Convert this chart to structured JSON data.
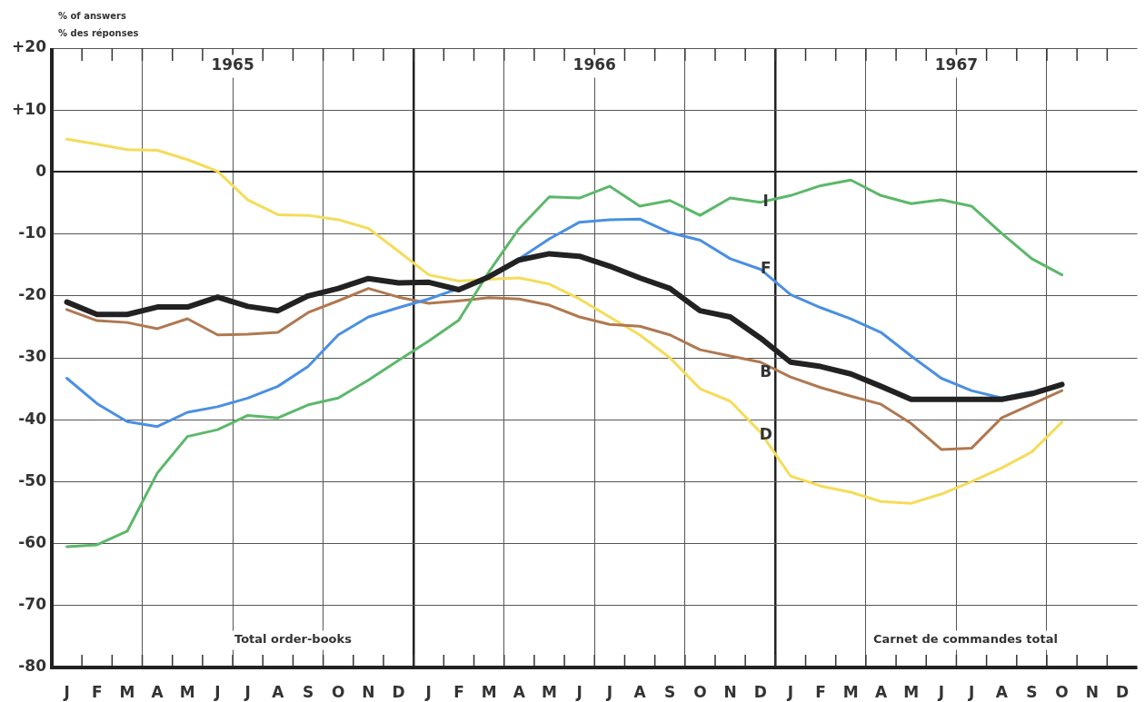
{
  "chart_data": {
    "type": "line",
    "ylabel": "% of answers\n% des réponses",
    "categories": [
      "J",
      "F",
      "M",
      "A",
      "M",
      "J",
      "J",
      "A",
      "S",
      "O",
      "N",
      "D",
      "J",
      "F",
      "M",
      "A",
      "M",
      "J",
      "J",
      "A",
      "S",
      "O",
      "N",
      "D",
      "J",
      "F",
      "M",
      "A",
      "M",
      "J",
      "J",
      "A",
      "S",
      "O",
      "N",
      "D"
    ],
    "ylim": [
      -80,
      20
    ],
    "yticks": [
      {
        "value": 20,
        "label": "+20"
      },
      {
        "value": 10,
        "label": "+10"
      },
      0,
      -10,
      -20,
      -30,
      -40,
      -50,
      -60,
      -70,
      -80
    ],
    "grid": true,
    "legend": false,
    "marker": "none",
    "line_style": "solid",
    "series": [
      {
        "name": "I",
        "color": "#5cb86a",
        "values": [
          -60.5,
          -60.2,
          -58.0,
          -48.6,
          -42.7,
          -41.6,
          -39.3,
          -39.7,
          -37.6,
          -36.5,
          -33.6,
          -30.4,
          -27.3,
          -23.9,
          -16.1,
          -9.1,
          -4.0,
          -4.2,
          -2.3,
          -5.5,
          -4.6,
          -7.0,
          -4.2,
          -4.9,
          -3.8,
          -2.2,
          -1.3,
          -3.8,
          -5.1,
          -4.5,
          -5.5,
          -9.9,
          -14.0,
          -16.6,
          null,
          null
        ]
      },
      {
        "name": "F",
        "color": "#4a90e2",
        "values": [
          -33.3,
          -37.4,
          -40.3,
          -41.1,
          -38.8,
          -37.9,
          -36.5,
          -34.6,
          -31.4,
          -26.3,
          -23.4,
          -21.9,
          -20.5,
          -18.8,
          -16.9,
          -14.0,
          -10.8,
          -8.1,
          -7.7,
          -7.6,
          -9.8,
          -11.0,
          -14.0,
          -15.7,
          -19.8,
          -21.9,
          -23.7,
          -25.9,
          -29.7,
          -33.3,
          -35.3,
          -36.5,
          -35.5,
          null,
          null,
          null
        ]
      },
      {
        "color": "#222222",
        "values": [
          -21.0,
          -23.0,
          -23.0,
          -21.8,
          -21.8,
          -20.2,
          -21.7,
          -22.4,
          -20.0,
          -18.8,
          -17.2,
          -17.9,
          -17.8,
          -19.0,
          -16.9,
          -14.2,
          -13.2,
          -13.6,
          -15.2,
          -17.1,
          -18.8,
          -22.4,
          -23.4,
          -26.8,
          -30.7,
          -31.4,
          -32.6,
          -34.6,
          -36.7,
          -36.7,
          -36.7,
          -36.7,
          -35.8,
          -34.3,
          null,
          null
        ]
      },
      {
        "name": "B",
        "color": "#b07850",
        "values": [
          -22.2,
          -24.0,
          -24.3,
          -25.3,
          -23.7,
          -26.3,
          -26.2,
          -25.9,
          -22.7,
          -20.8,
          -18.8,
          -20.2,
          -21.2,
          -20.8,
          -20.3,
          -20.5,
          -21.5,
          -23.4,
          -24.6,
          -24.9,
          -26.3,
          -28.7,
          -29.7,
          -30.7,
          -33.1,
          -34.8,
          -36.2,
          -37.5,
          -40.6,
          -44.8,
          -44.6,
          -39.7,
          -37.5,
          -35.3,
          null,
          null
        ]
      },
      {
        "name": "D",
        "color": "#f5dc5a",
        "values": [
          5.3,
          4.5,
          3.6,
          3.5,
          2.0,
          0.1,
          -4.5,
          -6.9,
          -7.0,
          -7.7,
          -9.1,
          -12.8,
          -16.6,
          -17.6,
          -17.3,
          -17.1,
          -18.1,
          -20.5,
          -23.4,
          -26.3,
          -30.0,
          -35.0,
          -37.0,
          -42.0,
          -49.1,
          -50.7,
          -51.7,
          -53.2,
          -53.5,
          -52.0,
          -50.0,
          -47.8,
          -45.2,
          -40.4,
          null,
          null
        ]
      }
    ],
    "annotations": [
      "1965",
      "1966",
      "1967",
      "Total order-books",
      "Carnet de commandes total"
    ]
  }
}
